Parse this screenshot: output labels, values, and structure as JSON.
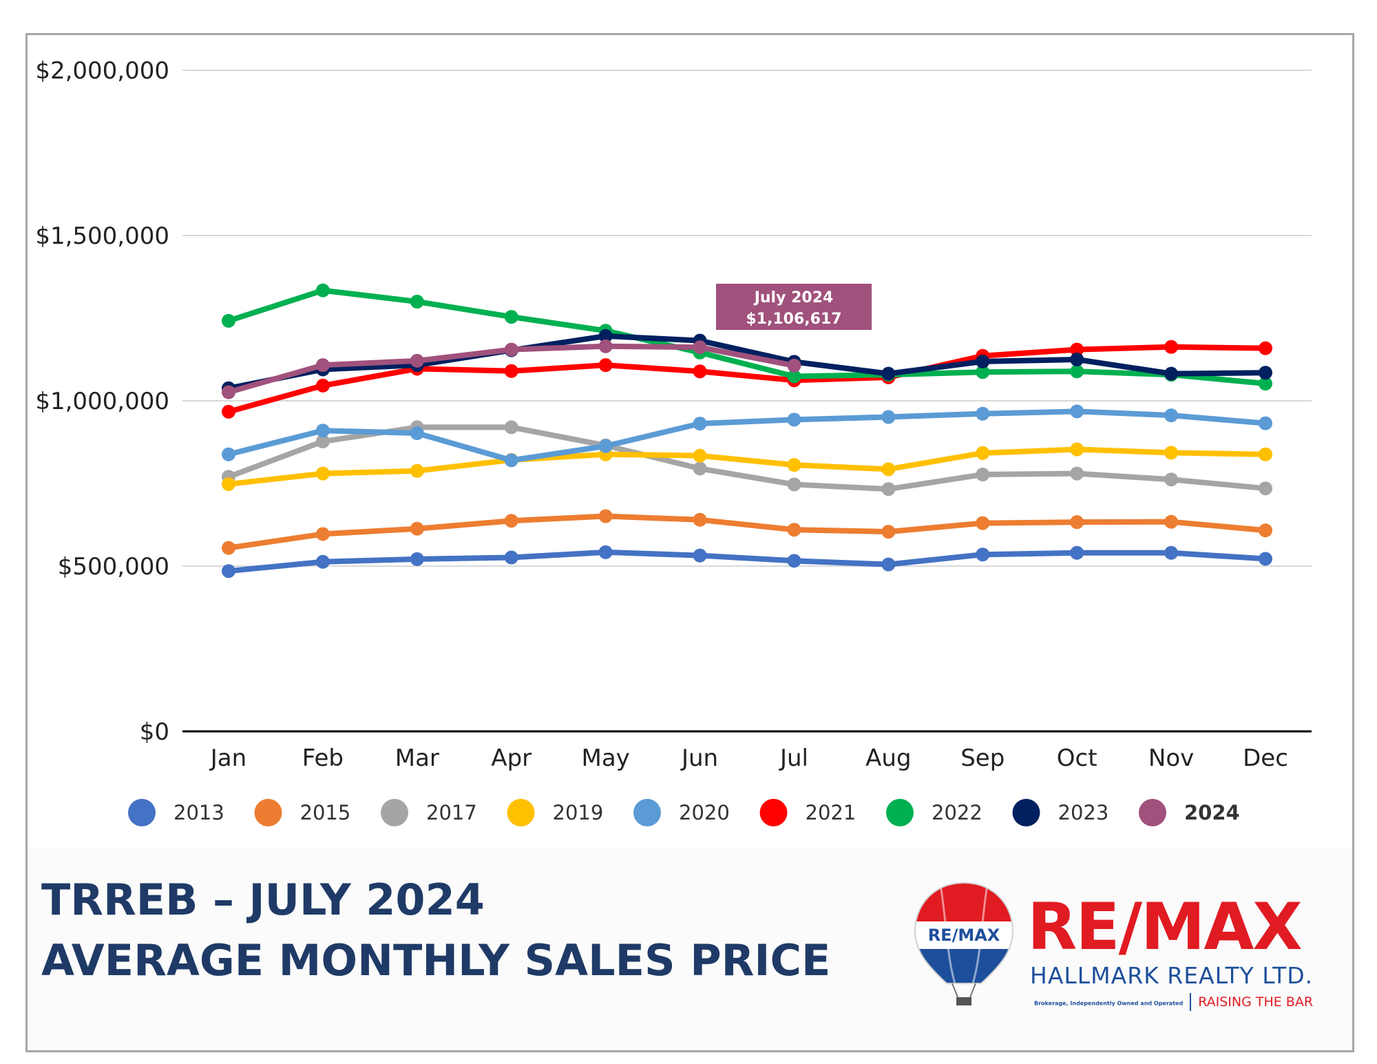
{
  "chart_data": {
    "type": "line",
    "categories": [
      "Jan",
      "Feb",
      "Mar",
      "Apr",
      "May",
      "Jun",
      "Jul",
      "Aug",
      "Sep",
      "Oct",
      "Nov",
      "Dec"
    ],
    "ylim": [
      0,
      2000000
    ],
    "y_ticks": [
      {
        "value": 0,
        "label": "$0"
      },
      {
        "value": 500000,
        "label": "$500,000"
      },
      {
        "value": 1000000,
        "label": "$1,000,000"
      },
      {
        "value": 1500000,
        "label": "$1,500,000"
      },
      {
        "value": 2000000,
        "label": "$2,000,000"
      }
    ],
    "grid": true,
    "legend_position": "bottom",
    "series": [
      {
        "name": "2013",
        "color": "#4472c4",
        "values": [
          485000,
          513000,
          521000,
          526000,
          542000,
          532000,
          516000,
          505000,
          535000,
          540000,
          540000,
          522000
        ]
      },
      {
        "name": "2015",
        "color": "#ed7d31",
        "values": [
          555000,
          597000,
          613000,
          637000,
          651000,
          640000,
          610000,
          604000,
          630000,
          633000,
          634000,
          608000
        ]
      },
      {
        "name": "2017",
        "color": "#a5a5a5",
        "values": [
          770000,
          877000,
          920000,
          920000,
          865000,
          795000,
          747000,
          733000,
          777000,
          780000,
          762000,
          735000
        ]
      },
      {
        "name": "2019",
        "color": "#ffc000",
        "values": [
          748000,
          780000,
          788000,
          821000,
          838000,
          834000,
          806000,
          793000,
          842000,
          853000,
          843000,
          838000
        ]
      },
      {
        "name": "2020",
        "color": "#5b9bd5",
        "values": [
          838000,
          910000,
          902000,
          820000,
          863000,
          931000,
          943000,
          951000,
          961000,
          968000,
          956000,
          932000
        ]
      },
      {
        "name": "2021",
        "color": "#ff0000",
        "values": [
          967000,
          1046000,
          1097000,
          1090000,
          1108000,
          1089000,
          1062000,
          1071000,
          1136000,
          1155000,
          1163000,
          1159000
        ]
      },
      {
        "name": "2022",
        "color": "#00b050",
        "values": [
          1242000,
          1334000,
          1300000,
          1254000,
          1212000,
          1146000,
          1074000,
          1079000,
          1087000,
          1089000,
          1079000,
          1052000
        ]
      },
      {
        "name": "2023",
        "color": "#002060",
        "values": [
          1038000,
          1095000,
          1108000,
          1153000,
          1196000,
          1182000,
          1118000,
          1082000,
          1119000,
          1125000,
          1082000,
          1085000
        ]
      },
      {
        "name": "2024",
        "color": "#a0517c",
        "values": [
          1026000,
          1108000,
          1121000,
          1155000,
          1165000,
          1162000,
          1106617,
          null,
          null,
          null,
          null,
          null
        ]
      }
    ],
    "annotation": {
      "series": "2024",
      "category": "Jul",
      "lines": [
        "July 2024",
        "$1,106,617"
      ],
      "color": "#a0517c"
    }
  },
  "footer": {
    "title_line1": "TRREB – JULY 2024",
    "title_line2": "AVERAGE MONTHLY SALES PRICE"
  },
  "logo": {
    "balloon_text": "RE/MAX",
    "wordmark": "RE/MAX",
    "company": "HALLMARK REALTY LTD.",
    "small_text": "Brokerage, Independently Owned and Operated",
    "tagline": "RAISING THE BAR",
    "colors": {
      "red": "#e11b22",
      "blue": "#1e4f9c"
    }
  }
}
